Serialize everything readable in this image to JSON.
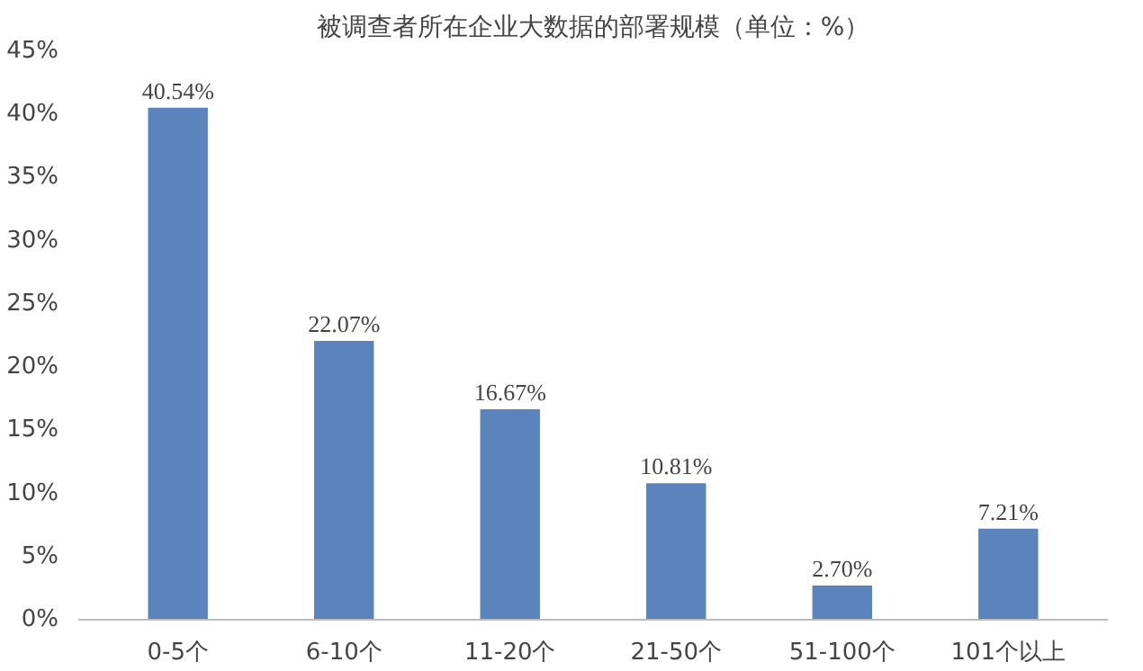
{
  "chart_data": {
    "type": "bar",
    "title": "被调查者所在企业大数据的部署规模（单位：%）",
    "categories": [
      "0-5个",
      "6-10个",
      "11-20个",
      "21-50个",
      "51-100个",
      "101个以上"
    ],
    "values": [
      40.54,
      22.07,
      16.67,
      10.81,
      2.7,
      7.21
    ],
    "value_labels": [
      "40.54%",
      "22.07%",
      "16.67%",
      "10.81%",
      "2.70%",
      "7.21%"
    ],
    "color": "#5b84bd",
    "ylim": [
      0,
      45
    ],
    "yticks": [
      {
        "value": 0,
        "label": "0%"
      },
      {
        "value": 5,
        "label": "5%"
      },
      {
        "value": 10,
        "label": "10%"
      },
      {
        "value": 15,
        "label": "15%"
      },
      {
        "value": 20,
        "label": "20%"
      },
      {
        "value": 25,
        "label": "25%"
      },
      {
        "value": 30,
        "label": "30%"
      },
      {
        "value": 35,
        "label": "35%"
      },
      {
        "value": 40,
        "label": "40%"
      },
      {
        "value": 45,
        "label": "45%"
      }
    ],
    "grid": false
  }
}
